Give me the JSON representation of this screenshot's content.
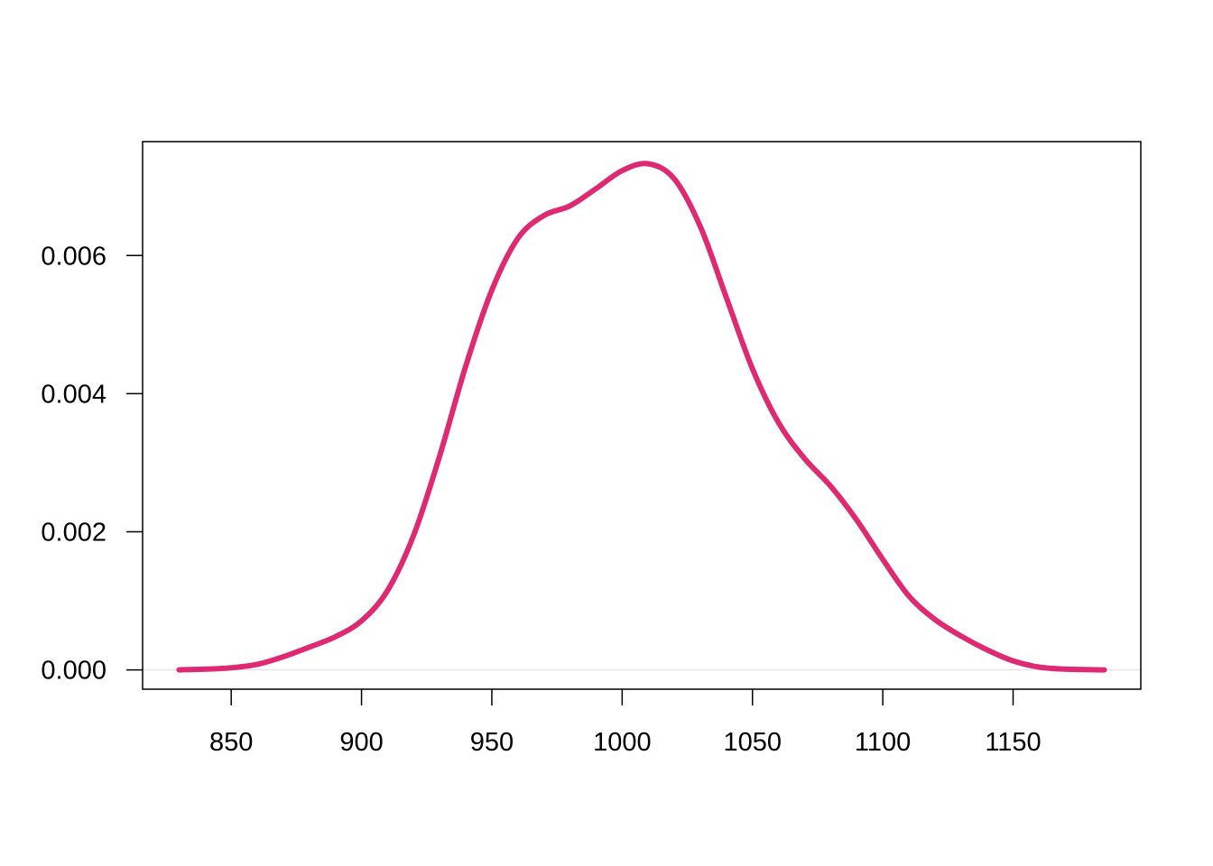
{
  "chart_data": {
    "type": "line",
    "title": "",
    "xlabel": "",
    "ylabel": "",
    "xlim": [
      816,
      1199
    ],
    "ylim": [
      -0.00028,
      0.00765
    ],
    "x_ticks": [
      850,
      900,
      950,
      1000,
      1050,
      1100,
      1150
    ],
    "x_tick_labels": [
      "850",
      "900",
      "950",
      "1000",
      "1050",
      "1100",
      "1150"
    ],
    "y_ticks": [
      0,
      0.002,
      0.004,
      0.006
    ],
    "y_tick_labels": [
      "0.000",
      "0.002",
      "0.004",
      "0.006"
    ],
    "baseline": 0,
    "grid": false,
    "legend": "none",
    "series": [
      {
        "color": "#DE2A72",
        "points": [
          [
            830,
            0.0
          ],
          [
            840,
            1e-05
          ],
          [
            850,
            3e-05
          ],
          [
            860,
            8e-05
          ],
          [
            870,
            0.00019
          ],
          [
            880,
            0.00033
          ],
          [
            890,
            0.00048
          ],
          [
            900,
            0.00071
          ],
          [
            910,
            0.00115
          ],
          [
            920,
            0.00195
          ],
          [
            930,
            0.0031
          ],
          [
            940,
            0.0044
          ],
          [
            950,
            0.0055
          ],
          [
            960,
            0.00625
          ],
          [
            970,
            0.00658
          ],
          [
            980,
            0.00672
          ],
          [
            990,
            0.00697
          ],
          [
            1000,
            0.00723
          ],
          [
            1010,
            0.00733
          ],
          [
            1020,
            0.00711
          ],
          [
            1030,
            0.00642
          ],
          [
            1040,
            0.00539
          ],
          [
            1050,
            0.00436
          ],
          [
            1060,
            0.00358
          ],
          [
            1070,
            0.00306
          ],
          [
            1080,
            0.00266
          ],
          [
            1090,
            0.00217
          ],
          [
            1100,
            0.0016
          ],
          [
            1110,
            0.00107
          ],
          [
            1120,
            0.00073
          ],
          [
            1130,
            0.00049
          ],
          [
            1140,
            0.00029
          ],
          [
            1150,
            0.00013
          ],
          [
            1160,
            4e-05
          ],
          [
            1170,
            1e-05
          ],
          [
            1185,
            0.0
          ]
        ]
      }
    ]
  }
}
